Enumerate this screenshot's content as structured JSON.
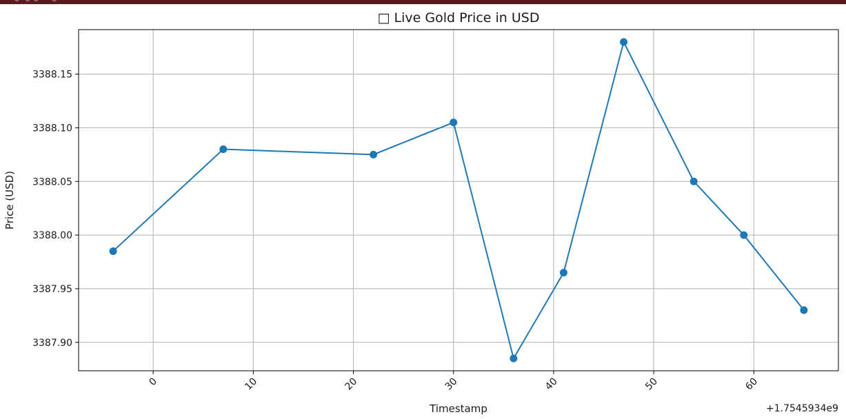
{
  "window": {
    "top_strip_text": "*%-@--@-@---*-@* ·· .",
    "strip_color": "#5a1a1e"
  },
  "chart_data": {
    "type": "line",
    "title": "□ Live Gold Price in USD",
    "xlabel": "Timestamp",
    "ylabel": "Price (USD)",
    "x_offset_label": "+1.7545934e9",
    "x": [
      -4,
      7,
      22,
      30,
      36,
      41,
      47,
      54,
      59,
      65
    ],
    "series": [
      {
        "values": [
          3387.985,
          3388.08,
          3388.075,
          3388.105,
          3387.885,
          3387.965,
          3388.18,
          3388.05,
          3388.0,
          3387.93
        ],
        "color": "#1f77b4",
        "marker": "circle"
      }
    ],
    "xlim": [
      -7.45,
      68.45
    ],
    "ylim": [
      3387.8735,
      3388.1915
    ],
    "xticks": [
      0,
      10,
      20,
      30,
      40,
      50,
      60
    ],
    "yticks": [
      3387.9,
      3387.95,
      3388.0,
      3388.05,
      3388.1,
      3388.15
    ],
    "ytick_labels": [
      "3387.90",
      "3387.95",
      "3388.00",
      "3388.05",
      "3388.10",
      "3388.15"
    ],
    "xtick_labels": [
      "0",
      "10",
      "20",
      "30",
      "40",
      "50",
      "60"
    ],
    "grid": true
  }
}
